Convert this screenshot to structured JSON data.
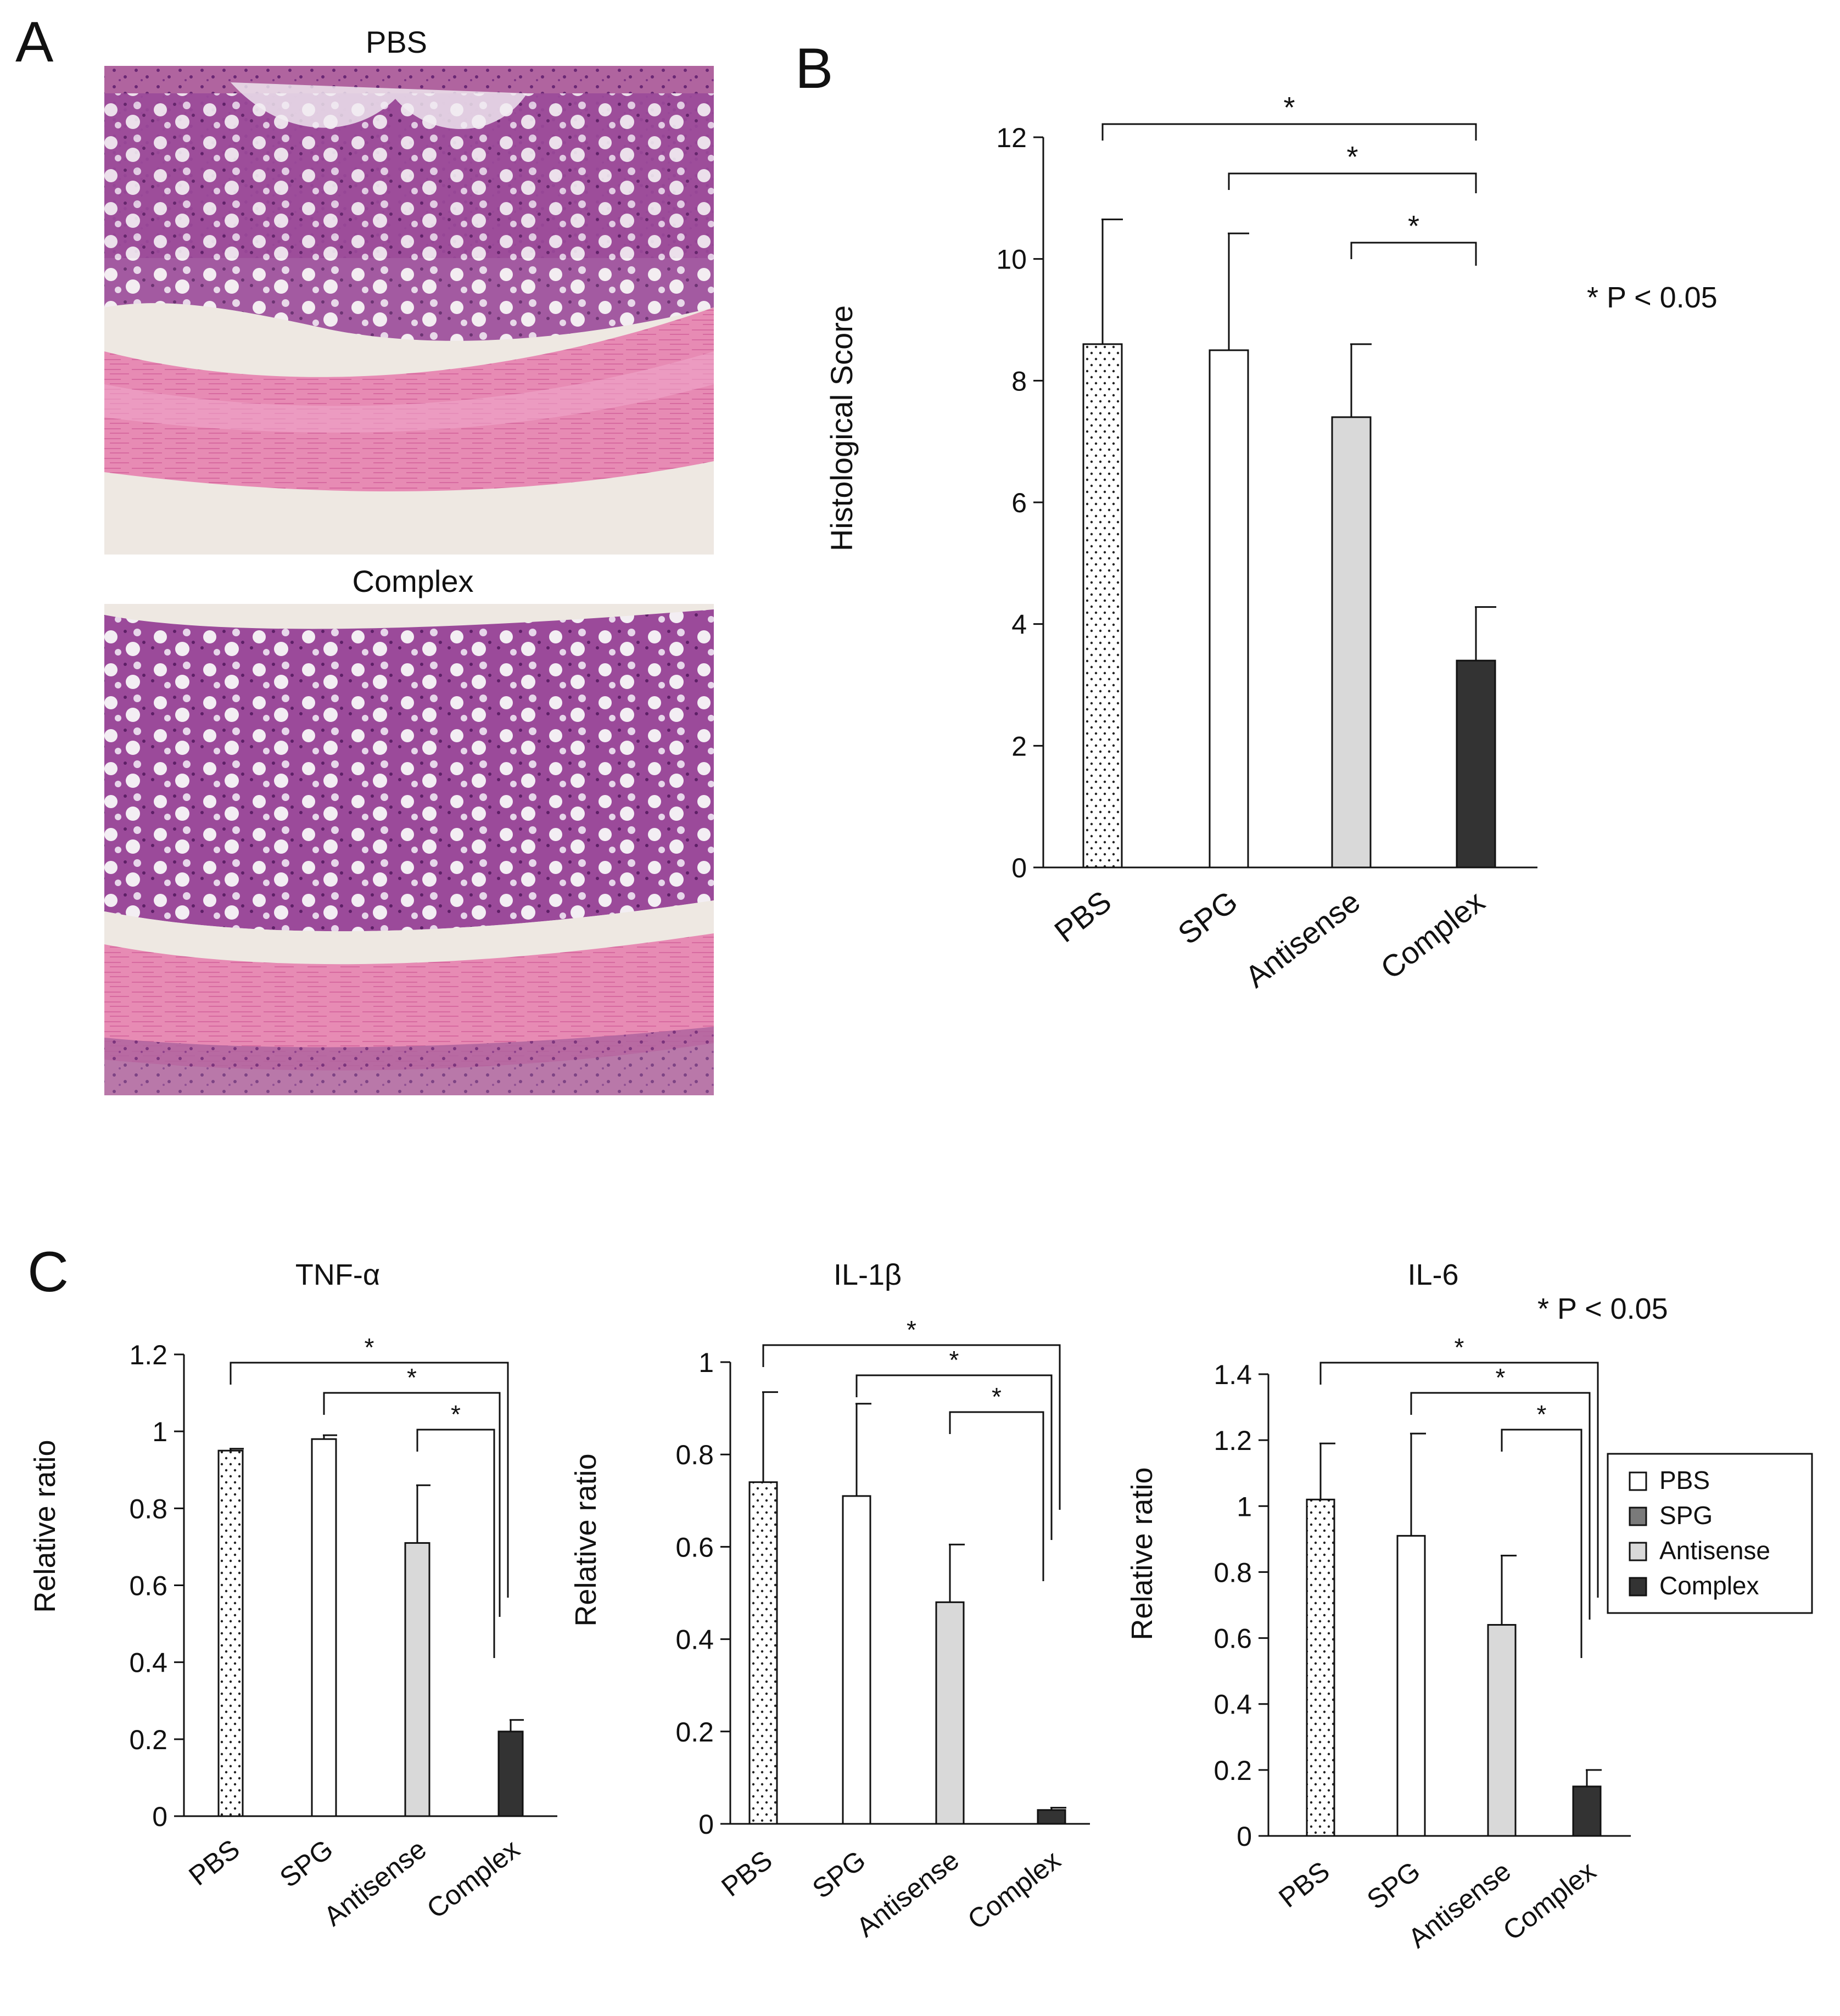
{
  "panel_labels": {
    "a": "A",
    "b": "B",
    "c": "C"
  },
  "micrographs": {
    "top_title": "PBS",
    "bottom_title": "Complex"
  },
  "legend": {
    "items": [
      {
        "label": "PBS",
        "fill": "dots"
      },
      {
        "label": "SPG",
        "fill": "#7a7a7a"
      },
      {
        "label": "Antisense",
        "fill": "#d9d9d9"
      },
      {
        "label": "Complex",
        "fill": "#333333"
      }
    ]
  },
  "colors": {
    "PBS": "#ffffff",
    "SPG": "#ffffff",
    "Antisense": "#d9d9d9",
    "Complex": "#333333",
    "he_pink": "#e98bb8",
    "he_purple": "#8a3a8c",
    "he_background": "#eee8e2"
  },
  "chart_data": [
    {
      "panel": "B",
      "type": "bar",
      "title": "",
      "xlabel": "",
      "ylabel": "Histological Score",
      "categories": [
        "PBS",
        "SPG",
        "Antisense",
        "Complex"
      ],
      "values": [
        8.6,
        8.5,
        7.4,
        3.4
      ],
      "error": [
        2.05,
        1.92,
        1.2,
        0.88
      ],
      "ylim": [
        0,
        12
      ],
      "yticks": [
        0,
        2,
        4,
        6,
        8,
        10,
        12
      ],
      "significance": [
        {
          "from": "PBS",
          "to": "Complex",
          "label": "*"
        },
        {
          "from": "SPG",
          "to": "Complex",
          "label": "*"
        },
        {
          "from": "Antisense",
          "to": "Complex",
          "label": "*"
        }
      ],
      "note": "* P < 0.05",
      "grid": false,
      "legend": "none"
    },
    {
      "panel": "C",
      "type": "bar",
      "title": "TNF-α",
      "xlabel": "",
      "ylabel": "Relative ratio",
      "categories": [
        "PBS",
        "SPG",
        "Antisense",
        "Complex"
      ],
      "values": [
        0.95,
        0.98,
        0.71,
        0.22
      ],
      "error": [
        0.005,
        0.01,
        0.15,
        0.03
      ],
      "ylim": [
        0,
        1.2
      ],
      "yticks": [
        "0",
        "0.2",
        "0.4",
        "0.6",
        "0.8",
        "1",
        "1.2"
      ],
      "significance": [
        {
          "from": "PBS",
          "to": "Complex",
          "label": "*"
        },
        {
          "from": "SPG",
          "to": "Complex",
          "label": "*"
        },
        {
          "from": "Antisense",
          "to": "Complex",
          "label": "*"
        }
      ],
      "grid": false,
      "legend": "none"
    },
    {
      "panel": "C",
      "type": "bar",
      "title": "IL-1β",
      "xlabel": "",
      "ylabel": "Relative ratio",
      "categories": [
        "PBS",
        "SPG",
        "Antisense",
        "Complex"
      ],
      "values": [
        0.74,
        0.71,
        0.48,
        0.03
      ],
      "error": [
        0.195,
        0.2,
        0.125,
        0.005
      ],
      "ylim": [
        0,
        1
      ],
      "yticks": [
        "0",
        "0.2",
        "0.4",
        "0.6",
        "0.8",
        "1"
      ],
      "significance": [
        {
          "from": "PBS",
          "to": "Complex",
          "label": "*"
        },
        {
          "from": "SPG",
          "to": "Complex",
          "label": "*"
        },
        {
          "from": "Antisense",
          "to": "Complex",
          "label": "*"
        }
      ],
      "grid": false,
      "legend": "none"
    },
    {
      "panel": "C",
      "type": "bar",
      "title": "IL-6",
      "xlabel": "",
      "ylabel": "Relative ratio",
      "categories": [
        "PBS",
        "SPG",
        "Antisense",
        "Complex"
      ],
      "values": [
        1.02,
        0.91,
        0.64,
        0.15
      ],
      "error": [
        0.17,
        0.31,
        0.21,
        0.05
      ],
      "ylim": [
        0,
        1.4
      ],
      "yticks": [
        "0",
        "0.2",
        "0.4",
        "0.6",
        "0.8",
        "1",
        "1.2",
        "1.4"
      ],
      "significance": [
        {
          "from": "PBS",
          "to": "Complex",
          "label": "*"
        },
        {
          "from": "SPG",
          "to": "Complex",
          "label": "*"
        },
        {
          "from": "Antisense",
          "to": "Complex",
          "label": "*"
        }
      ],
      "note": "* P < 0.05",
      "grid": false,
      "legend": "right"
    }
  ]
}
